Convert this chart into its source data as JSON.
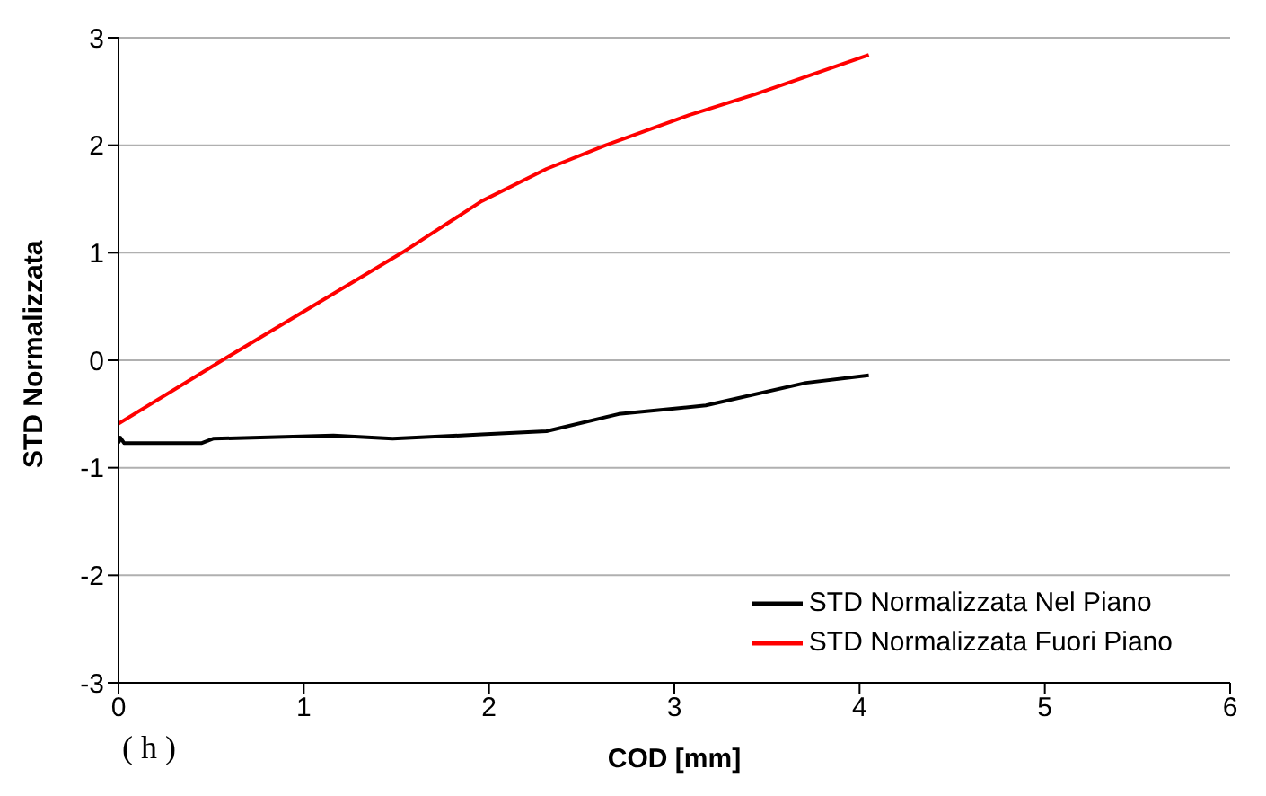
{
  "chart_data": {
    "type": "line",
    "xlabel": "COD [mm]",
    "ylabel": "STD Normalizzata",
    "xlim": [
      0,
      6
    ],
    "xticks": [
      0,
      1,
      2,
      3,
      4,
      5,
      6
    ],
    "ylim": [
      -3,
      3
    ],
    "yticks": [
      -3,
      -2,
      -1,
      0,
      1,
      2,
      3
    ],
    "grid": "y",
    "legend": "bottom right",
    "marker": "none",
    "line_style": "solid",
    "annotations": [
      "( h )"
    ],
    "series": [
      {
        "name": "STD Normalizzata Nel Piano",
        "color": "#000000",
        "x": [
          0,
          0.01,
          0.03,
          0.21,
          0.45,
          0.51,
          1.16,
          1.48,
          1.96,
          2.31,
          2.7,
          3.17,
          3.71,
          4.05
        ],
        "values": [
          -0.77,
          -0.72,
          -0.77,
          -0.77,
          -0.77,
          -0.73,
          -0.7,
          -0.73,
          -0.69,
          -0.66,
          -0.5,
          -0.42,
          -0.21,
          -0.14
        ]
      },
      {
        "name": "STD Normalizzata Fuori Piano",
        "color": "#ff0000",
        "x": [
          0,
          0.56,
          1.53,
          1.96,
          2.31,
          2.63,
          3.08,
          3.43,
          4.05
        ],
        "values": [
          -0.59,
          0,
          1.0,
          1.48,
          1.78,
          2.0,
          2.28,
          2.47,
          2.84
        ]
      }
    ]
  }
}
